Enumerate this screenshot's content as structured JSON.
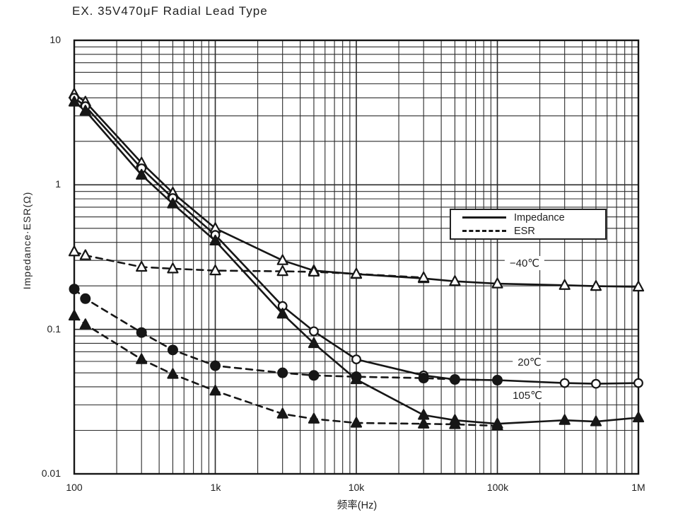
{
  "title": "EX. 35V470μF Radial Lead Type",
  "colors": {
    "line": "#161616",
    "grid": "#2b2b2b",
    "background": "#ffffff"
  },
  "chart_data": {
    "type": "line",
    "title": "EX. 35V470μF Radial Lead Type",
    "xlabel": "频率(Hz)",
    "ylabel": "Impedance·ESR(Ω)",
    "x_scale": "log",
    "y_scale": "log",
    "x_range": [
      100,
      1000000
    ],
    "y_range": [
      0.01,
      10
    ],
    "grid": "full log grid, major and minor lines, both axes",
    "x_ticks": [
      {
        "value": 100,
        "label": "100"
      },
      {
        "value": 1000,
        "label": "1k"
      },
      {
        "value": 10000,
        "label": "10k"
      },
      {
        "value": 100000,
        "label": "100k"
      },
      {
        "value": 1000000,
        "label": "1M"
      }
    ],
    "y_ticks": [
      {
        "value": 10,
        "label": "10"
      },
      {
        "value": 1,
        "label": "1"
      },
      {
        "value": 0.1,
        "label": "0.1"
      },
      {
        "value": 0.01,
        "label": "0.01"
      }
    ],
    "legend": {
      "position": "inside upper-right",
      "items": [
        {
          "label": "Impedance",
          "style": "solid"
        },
        {
          "label": "ESR",
          "style": "dashed"
        }
      ]
    },
    "annotations": [
      {
        "text": "−40℃",
        "x": 140000,
        "y": 0.28
      },
      {
        "text": "20℃",
        "x": 168000,
        "y": 0.058
      },
      {
        "text": "105℃",
        "x": 163000,
        "y": 0.034
      }
    ],
    "series": [
      {
        "name": "Impedance −40℃",
        "quantity": "Impedance",
        "temperature": "−40℃",
        "line": "solid",
        "marker": "triangle-open",
        "x": [
          100,
          120,
          300,
          500,
          1000,
          3000,
          5000,
          10000,
          30000,
          50000,
          100000,
          300000,
          500000,
          1000000
        ],
        "y": [
          4.25,
          3.75,
          1.42,
          0.88,
          0.5,
          0.3,
          0.255,
          0.241,
          0.225,
          0.215,
          0.207,
          0.202,
          0.199,
          0.197
        ]
      },
      {
        "name": "Impedance 20℃",
        "quantity": "Impedance",
        "temperature": "20℃",
        "line": "solid",
        "marker": "circle-open",
        "x": [
          100,
          120,
          300,
          500,
          1000,
          3000,
          5000,
          10000,
          30000,
          50000,
          100000,
          300000,
          500000,
          1000000
        ],
        "y": [
          4.0,
          3.5,
          1.3,
          0.81,
          0.45,
          0.145,
          0.097,
          0.062,
          0.048,
          0.045,
          0.0445,
          0.0425,
          0.042,
          0.0425
        ]
      },
      {
        "name": "Impedance 105℃",
        "quantity": "Impedance",
        "temperature": "105℃",
        "line": "solid",
        "marker": "triangle-filled",
        "x": [
          100,
          120,
          300,
          500,
          1000,
          3000,
          5000,
          10000,
          30000,
          50000,
          100000,
          300000,
          500000,
          1000000
        ],
        "y": [
          3.75,
          3.25,
          1.17,
          0.74,
          0.41,
          0.128,
          0.08,
          0.045,
          0.0255,
          0.0235,
          0.0222,
          0.0235,
          0.023,
          0.0245
        ]
      },
      {
        "name": "ESR −40℃",
        "quantity": "ESR",
        "temperature": "−40℃",
        "line": "dashed",
        "marker": "triangle-open",
        "x": [
          100,
          120,
          300,
          500,
          1000,
          3000,
          5000,
          10000,
          30000
        ],
        "y": [
          0.345,
          0.325,
          0.27,
          0.263,
          0.255,
          0.252,
          0.25,
          0.242,
          0.228
        ]
      },
      {
        "name": "ESR 20℃",
        "quantity": "ESR",
        "temperature": "20℃",
        "line": "dashed",
        "marker": "circle-filled",
        "x": [
          100,
          120,
          300,
          500,
          1000,
          3000,
          5000,
          10000,
          30000,
          50000,
          100000
        ],
        "y": [
          0.19,
          0.163,
          0.095,
          0.072,
          0.056,
          0.05,
          0.048,
          0.047,
          0.046,
          0.045,
          0.0445
        ]
      },
      {
        "name": "ESR 105℃",
        "quantity": "ESR",
        "temperature": "105℃",
        "line": "dashed",
        "marker": "triangle-filled",
        "x": [
          100,
          120,
          300,
          500,
          1000,
          3000,
          5000,
          10000,
          30000,
          50000,
          100000
        ],
        "y": [
          0.124,
          0.108,
          0.062,
          0.049,
          0.0375,
          0.026,
          0.024,
          0.0225,
          0.0222,
          0.022,
          0.0215
        ]
      }
    ]
  }
}
